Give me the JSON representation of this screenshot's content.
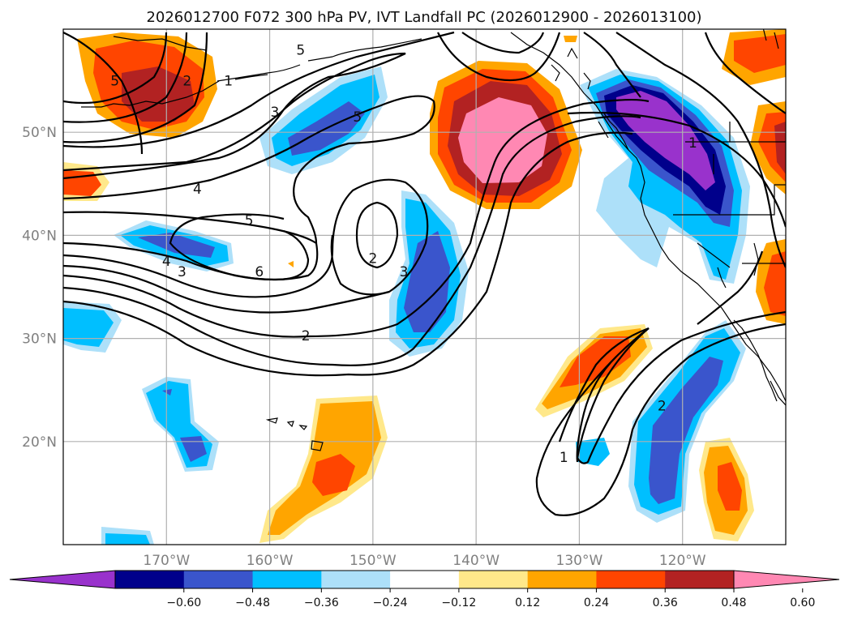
{
  "chart_data": {
    "type": "map-contour",
    "title": "2026012700 F072 300 hPa PV, IVT Landfall PC (2026012900 - 2026013100)",
    "x_ticks": [
      "170°W",
      "160°W",
      "150°W",
      "140°W",
      "130°W",
      "120°W"
    ],
    "y_ticks": [
      "50°N",
      "40°N",
      "30°N",
      "20°N"
    ],
    "lon_range": [
      -180,
      -110
    ],
    "lat_range": [
      10,
      60
    ],
    "colorbar": {
      "ticks": [
        "−0.60",
        "−0.48",
        "−0.36",
        "−0.24",
        "−0.12",
        "0.12",
        "0.24",
        "0.36",
        "0.48",
        "0.60"
      ],
      "bins": [
        {
          "label": "< −0.60",
          "color": "#9932cc"
        },
        {
          "label": "−0.60 to −0.48",
          "color": "#00008b"
        },
        {
          "label": "−0.48 to −0.36",
          "color": "#3a55cc"
        },
        {
          "label": "−0.36 to −0.24",
          "color": "#00bfff"
        },
        {
          "label": "−0.24 to −0.12",
          "color": "#ade0f9"
        },
        {
          "label": "−0.12 to 0.12",
          "color": "#ffffff"
        },
        {
          "label": "0.12 to 0.24",
          "color": "#ffe88a"
        },
        {
          "label": "0.24 to 0.36",
          "color": "#ffa500"
        },
        {
          "label": "0.36 to 0.48",
          "color": "#ff4500"
        },
        {
          "label": "0.48 to 0.60",
          "color": "#b22222"
        },
        {
          "label": "> 0.60",
          "color": "#ff88b3"
        }
      ]
    },
    "pv_contour_labels": [
      "1",
      "2",
      "3",
      "4",
      "5",
      "6"
    ],
    "pv_labels_on_map": [
      {
        "text": "5",
        "lon": -157,
        "lat": 58
      },
      {
        "text": "1",
        "lon": -164,
        "lat": 55
      },
      {
        "text": "3",
        "lon": -159.5,
        "lat": 52
      },
      {
        "text": "5",
        "lon": -151.5,
        "lat": 51.5
      },
      {
        "text": "4",
        "lon": -167,
        "lat": 44.5
      },
      {
        "text": "5",
        "lon": -162,
        "lat": 41.5
      },
      {
        "text": "4",
        "lon": -170,
        "lat": 37.5
      },
      {
        "text": "3",
        "lon": -168.5,
        "lat": 36.5
      },
      {
        "text": "6",
        "lon": -161,
        "lat": 36.5
      },
      {
        "text": "2",
        "lon": -150,
        "lat": 37.8
      },
      {
        "text": "3",
        "lon": -147,
        "lat": 36.5
      },
      {
        "text": "2",
        "lon": -156.5,
        "lat": 30.3
      },
      {
        "text": "2",
        "lon": -122,
        "lat": 23.5
      },
      {
        "text": "1",
        "lon": -131.5,
        "lat": 18.5
      },
      {
        "text": "5",
        "lon": -175,
        "lat": 55
      },
      {
        "text": "2",
        "lon": -168,
        "lat": 55
      },
      {
        "text": "1",
        "lon": -119,
        "lat": 49
      }
    ]
  }
}
